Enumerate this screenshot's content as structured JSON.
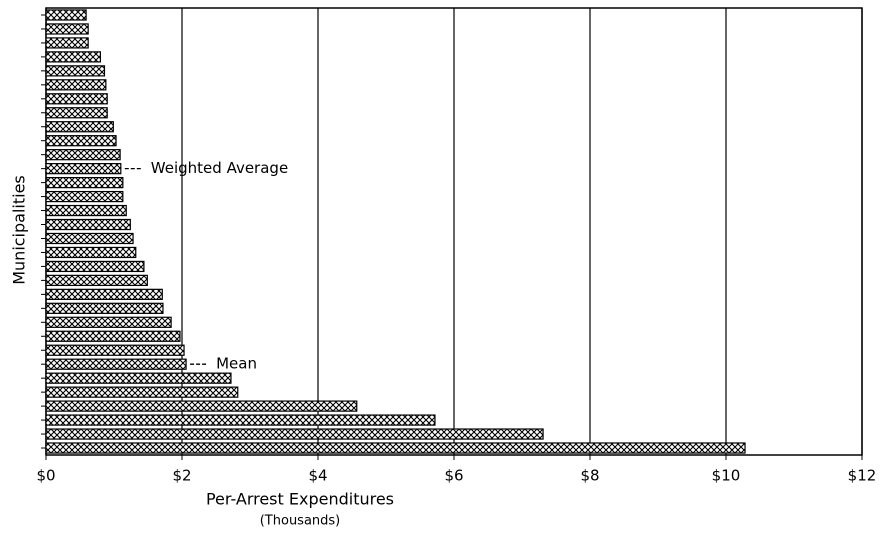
{
  "chart_data": {
    "type": "barh",
    "xlabel": "Per-Arrest Expenditures",
    "xlabel_sub": "(Thousands)",
    "ylabel": "Municipalities",
    "categories": [
      null,
      null,
      null,
      null,
      null,
      null,
      null,
      null,
      null,
      null,
      null,
      null,
      null,
      null,
      null,
      null,
      null,
      null,
      null,
      null,
      null,
      null,
      null,
      null,
      null,
      null,
      null,
      null,
      null,
      null,
      null,
      null
    ],
    "values": [
      0.59,
      0.62,
      0.62,
      0.8,
      0.86,
      0.88,
      0.9,
      0.9,
      0.99,
      1.03,
      1.09,
      1.1,
      1.13,
      1.13,
      1.18,
      1.24,
      1.28,
      1.32,
      1.44,
      1.49,
      1.71,
      1.72,
      1.84,
      1.97,
      2.03,
      2.06,
      2.72,
      2.82,
      4.57,
      5.72,
      7.31,
      10.28
    ],
    "color": "#000000",
    "xlim": [
      0,
      12
    ],
    "xticks": [
      {
        "value": 0,
        "label": "$0"
      },
      {
        "value": 2,
        "label": "$2"
      },
      {
        "value": 4,
        "label": "$4"
      },
      {
        "value": 6,
        "label": "$6"
      },
      {
        "value": 8,
        "label": "$8"
      },
      {
        "value": 10,
        "label": "$10"
      },
      {
        "value": 12,
        "label": "$12"
      }
    ],
    "grid": true,
    "annotations": [
      {
        "text": "Weighted Average",
        "index": 11
      },
      {
        "text": "Mean",
        "index": 25
      }
    ]
  }
}
